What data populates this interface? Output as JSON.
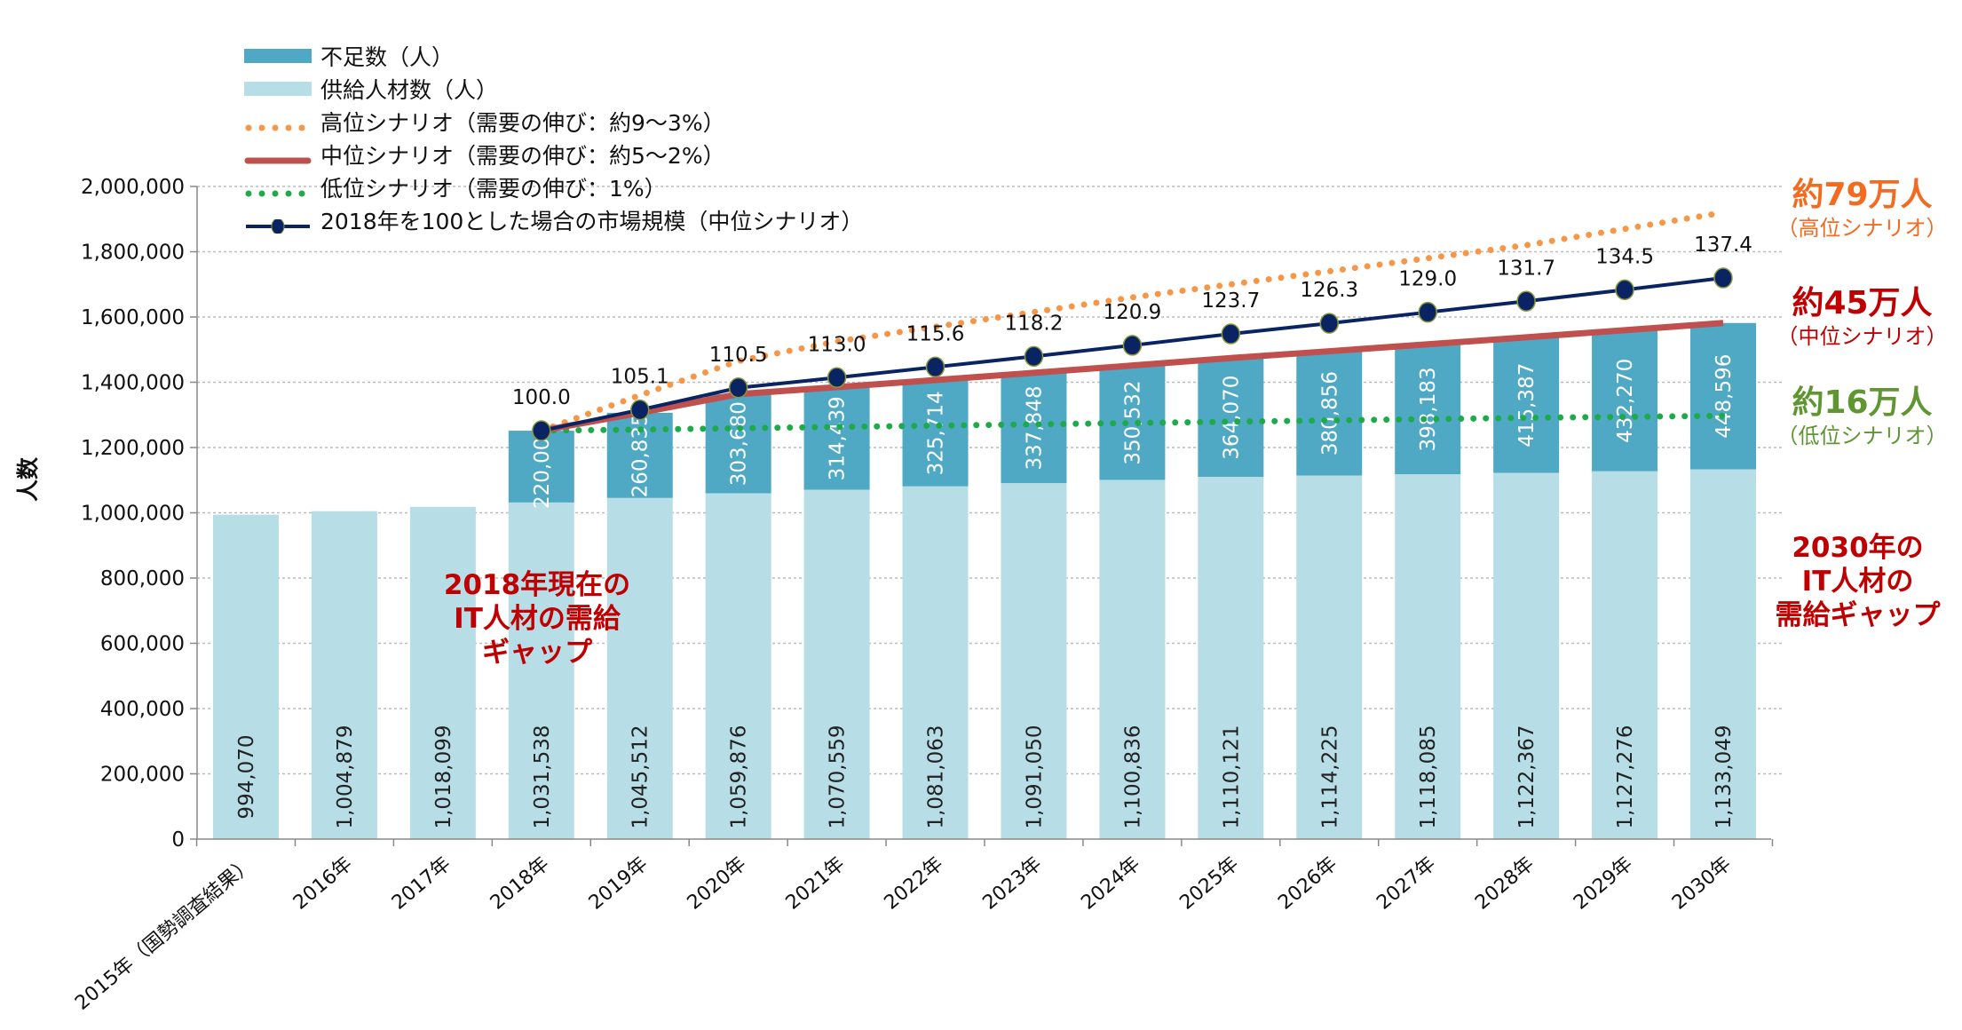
{
  "chart_data": {
    "type": "bar",
    "ylabel": "人数",
    "ylim": [
      0,
      2000000
    ],
    "yticks": [
      "0",
      "200,000",
      "400,000",
      "600,000",
      "800,000",
      "1,000,000",
      "1,200,000",
      "1,400,000",
      "1,600,000",
      "1,800,000",
      "2,000,000"
    ],
    "grid": true,
    "legend_position": "top-left",
    "categories": [
      "2015年（国勢調査結果）",
      "2016年",
      "2017年",
      "2018年",
      "2019年",
      "2020年",
      "2021年",
      "2022年",
      "2023年",
      "2024年",
      "2025年",
      "2026年",
      "2027年",
      "2028年",
      "2029年",
      "2030年"
    ],
    "series": [
      {
        "name": "供給人材数（人）",
        "kind": "stacked-bar",
        "color": "#b7dde6",
        "values": [
          994070,
          1004879,
          1018099,
          1031538,
          1045512,
          1059876,
          1070559,
          1081063,
          1091050,
          1100836,
          1110121,
          1114225,
          1118085,
          1122367,
          1127276,
          1133049
        ],
        "labels": [
          "994,070",
          "1,004,879",
          "1,018,099",
          "1,031,538",
          "1,045,512",
          "1,059,876",
          "1,070,559",
          "1,081,063",
          "1,091,050",
          "1,100,836",
          "1,110,121",
          "1,114,225",
          "1,118,085",
          "1,122,367",
          "1,127,276",
          "1,133,049"
        ]
      },
      {
        "name": "不足数（人）",
        "kind": "stacked-bar",
        "color": "#4fa9c5",
        "values": [
          null,
          null,
          null,
          220000,
          260835,
          303680,
          314439,
          325714,
          337848,
          350532,
          364070,
          380856,
          398183,
          415387,
          432270,
          448596
        ],
        "labels": [
          null,
          null,
          null,
          "220,000",
          "260,835",
          "303,680",
          "314,439",
          "325,714",
          "337,848",
          "350,532",
          "364,070",
          "380,856",
          "398,183",
          "415,387",
          "432,270",
          "448,596"
        ]
      },
      {
        "name": "高位シナリオ（需要の伸び：約9～3%）",
        "kind": "dotted-line",
        "color": "#f79646",
        "values": [
          null,
          null,
          null,
          1251538,
          1360000,
          1465000,
          1525000,
          1570000,
          1615000,
          1660000,
          1700000,
          1740000,
          1780000,
          1820000,
          1870000,
          1920000
        ]
      },
      {
        "name": "中位シナリオ（需要の伸び：約5～2%）",
        "kind": "line",
        "color": "#c0504d",
        "values": [
          null,
          null,
          null,
          1251538,
          1306347,
          1363556,
          1384998,
          1406777,
          1428898,
          1451368,
          1474191,
          1495081,
          1516268,
          1537754,
          1559546,
          1581645
        ]
      },
      {
        "name": "低位シナリオ（需要の伸び：1%）",
        "kind": "dotted-line",
        "color": "#1faa4a",
        "values": [
          null,
          null,
          null,
          1251538,
          1255000,
          1259000,
          1263000,
          1267000,
          1271000,
          1275000,
          1279000,
          1283000,
          1287000,
          1291000,
          1294000,
          1297000
        ]
      },
      {
        "name": "2018年を100とした場合の市場規模（中位シナリオ）",
        "kind": "line-marker",
        "color": "#0a2463",
        "values": [
          null,
          null,
          null,
          100.0,
          105.1,
          110.5,
          113.0,
          115.6,
          118.2,
          120.9,
          123.7,
          126.3,
          129.0,
          131.7,
          134.5,
          137.4
        ],
        "labels": [
          null,
          null,
          null,
          "100.0",
          "105.1",
          "110.5",
          "113.0",
          "115.6",
          "118.2",
          "120.9",
          "123.7",
          "126.3",
          "129.0",
          "131.7",
          "134.5",
          "137.4"
        ]
      }
    ],
    "annotations": {
      "high": {
        "main": "約79万人",
        "sub": "（高位シナリオ）",
        "color": "#f26b21"
      },
      "mid": {
        "main": "約45万人",
        "sub": "（中位シナリオ）",
        "color": "#c00000"
      },
      "low": {
        "main": "約16万人",
        "sub": "（低位シナリオ）",
        "color": "#5f9632"
      },
      "gap2030": {
        "lines": [
          "2030年の",
          "IT人材の",
          "需給ギャップ"
        ],
        "color": "#c00000"
      },
      "gap2018": {
        "lines": [
          "2018年現在の",
          "IT人材の需給",
          "ギャップ"
        ],
        "color": "#c00000"
      }
    }
  }
}
